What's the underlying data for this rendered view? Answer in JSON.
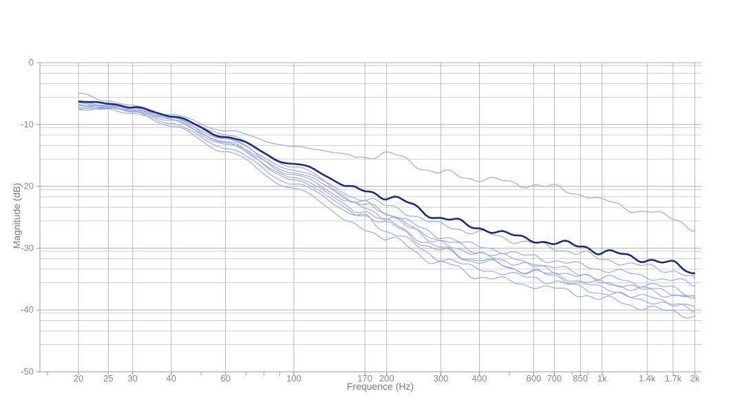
{
  "chart_data": {
    "type": "line",
    "title": "",
    "xlabel": "Frequence (Hz)",
    "ylabel": "Magnitude (dB)",
    "x_scale": "log",
    "xlim": [
      15,
      2100
    ],
    "ylim": [
      -50,
      0
    ],
    "x_ticks": [
      {
        "value": 20,
        "label": "20"
      },
      {
        "value": 25,
        "label": "25"
      },
      {
        "value": 30,
        "label": "30"
      },
      {
        "value": 40,
        "label": "40"
      },
      {
        "value": 60,
        "label": "60"
      },
      {
        "value": 100,
        "label": "100"
      },
      {
        "value": 170,
        "label": "170"
      },
      {
        "value": 200,
        "label": "200"
      },
      {
        "value": 300,
        "label": "300"
      },
      {
        "value": 400,
        "label": "400"
      },
      {
        "value": 600,
        "label": "600"
      },
      {
        "value": 700,
        "label": "700"
      },
      {
        "value": 850,
        "label": "850"
      },
      {
        "value": 1000,
        "label": "1k"
      },
      {
        "value": 1400,
        "label": "1.4k"
      },
      {
        "value": 1700,
        "label": "1.7k"
      },
      {
        "value": 2000,
        "label": "2k"
      }
    ],
    "y_ticks": [
      0,
      -10,
      -20,
      -30,
      -40,
      -50
    ],
    "grid": true,
    "legend": "none",
    "colors": {
      "highlight": "#1f2a7a",
      "others": "#9aa6dc"
    },
    "x": [
      20,
      25,
      30,
      40,
      60,
      100,
      170,
      200,
      300,
      400,
      600,
      700,
      850,
      1000,
      1400,
      1700,
      2000
    ],
    "series": [
      {
        "highlight": true,
        "values": [
          -6.3,
          -6.6,
          -7.2,
          -8.6,
          -12.0,
          -16.4,
          -20.8,
          -21.6,
          -25.0,
          -26.8,
          -28.6,
          -29.2,
          -29.6,
          -30.6,
          -31.8,
          -32.6,
          -34.0
        ]
      },
      {
        "highlight": false,
        "values": [
          -5.0,
          -6.2,
          -7.0,
          -8.4,
          -11.0,
          -13.6,
          -15.2,
          -14.8,
          -17.8,
          -18.8,
          -19.8,
          -20.2,
          -21.2,
          -22.4,
          -24.2,
          -25.0,
          -27.0
        ]
      },
      {
        "highlight": false,
        "values": [
          -6.8,
          -7.0,
          -7.6,
          -8.9,
          -12.4,
          -17.4,
          -22.0,
          -23.2,
          -26.2,
          -27.6,
          -29.2,
          -30.0,
          -30.8,
          -31.8,
          -33.0,
          -33.6,
          -35.0
        ]
      },
      {
        "highlight": false,
        "values": [
          -7.2,
          -7.2,
          -7.6,
          -8.7,
          -11.6,
          -16.8,
          -22.8,
          -24.4,
          -28.0,
          -29.8,
          -31.4,
          -32.0,
          -32.8,
          -33.4,
          -34.6,
          -35.2,
          -36.0
        ]
      },
      {
        "highlight": false,
        "values": [
          -7.0,
          -7.0,
          -7.4,
          -8.6,
          -12.2,
          -18.2,
          -23.4,
          -25.0,
          -28.8,
          -30.6,
          -32.4,
          -33.2,
          -34.0,
          -34.8,
          -35.8,
          -36.6,
          -37.6
        ]
      },
      {
        "highlight": false,
        "values": [
          -6.5,
          -6.8,
          -7.4,
          -9.0,
          -12.8,
          -19.0,
          -24.6,
          -26.2,
          -30.4,
          -32.2,
          -33.8,
          -34.4,
          -35.2,
          -35.8,
          -36.6,
          -37.2,
          -38.0
        ]
      },
      {
        "highlight": false,
        "values": [
          -7.6,
          -7.4,
          -7.8,
          -9.2,
          -13.0,
          -17.8,
          -22.8,
          -24.6,
          -29.0,
          -31.2,
          -32.8,
          -33.6,
          -34.6,
          -35.4,
          -36.8,
          -37.6,
          -38.2
        ]
      },
      {
        "highlight": false,
        "values": [
          -7.4,
          -7.6,
          -8.2,
          -9.8,
          -13.8,
          -19.6,
          -25.0,
          -27.2,
          -31.6,
          -33.4,
          -34.8,
          -35.4,
          -36.4,
          -37.2,
          -38.4,
          -39.2,
          -40.0
        ]
      },
      {
        "highlight": false,
        "values": [
          -6.6,
          -7.2,
          -8.0,
          -10.2,
          -14.4,
          -20.4,
          -26.8,
          -28.4,
          -32.4,
          -34.6,
          -36.0,
          -36.6,
          -37.4,
          -38.2,
          -39.6,
          -40.4,
          -41.0
        ]
      },
      {
        "highlight": false,
        "values": [
          -7.0,
          -7.2,
          -7.8,
          -9.4,
          -13.2,
          -18.6,
          -24.0,
          -25.8,
          -30.0,
          -32.0,
          -33.8,
          -34.6,
          -35.6,
          -36.6,
          -38.0,
          -38.8,
          -39.4
        ]
      }
    ]
  }
}
